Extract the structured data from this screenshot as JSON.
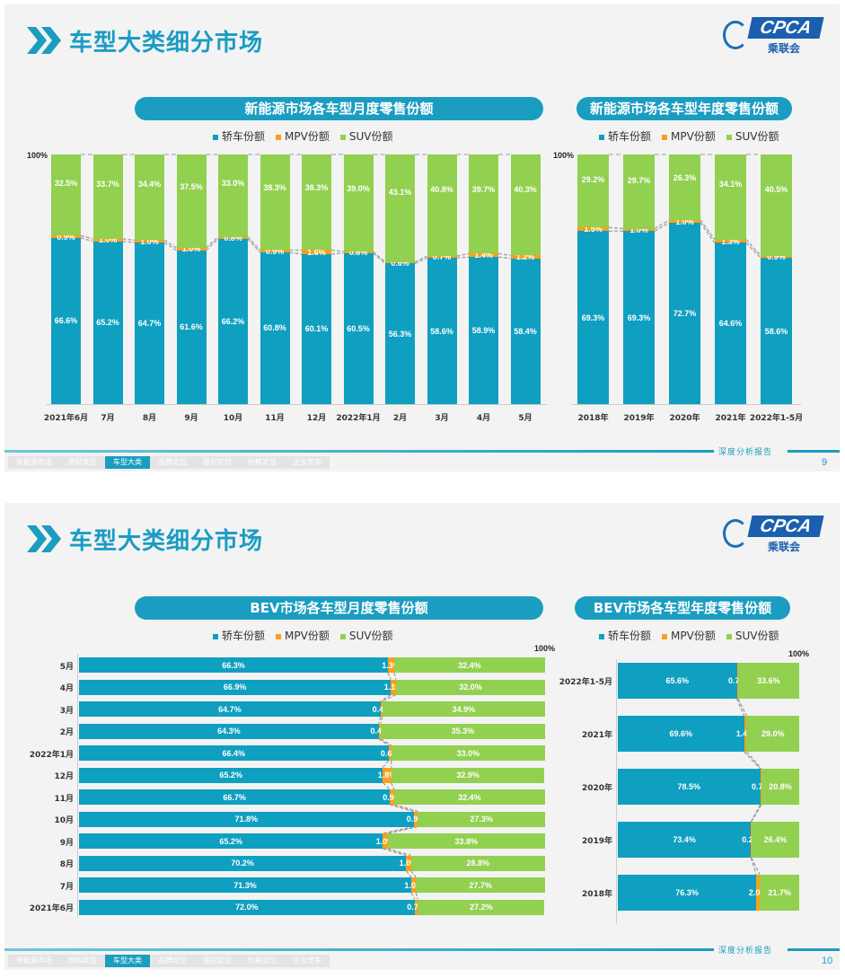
{
  "colors": {
    "sedan": "#0f9fc0",
    "mpv": "#f7a11a",
    "suv": "#92d050",
    "accent": "#1a9dc0"
  },
  "footer": {
    "nav": [
      "新能源市场",
      "燃料类型",
      "车型大类",
      "品牌定位",
      "级别定位",
      "价格定位",
      "企业竞争"
    ],
    "active_index": 2,
    "report_label": "深度分析报告"
  },
  "logo": {
    "text": "CPCA",
    "sub": "乘联会",
    "mark": "CPCA"
  },
  "legend": {
    "sedan": "轿车份额",
    "mpv": "MPV份额",
    "suv": "SUV份额"
  },
  "slides": [
    {
      "title": "车型大类细分市场",
      "page": "9",
      "chart_left_title": "新能源市场各车型月度零售份额",
      "chart_right_title": "新能源市场各车型年度零售份额"
    },
    {
      "title": "车型大类细分市场",
      "page": "10",
      "chart_left_title": "BEV市场各车型月度零售份额",
      "chart_right_title": "BEV市场各车型年度零售份额"
    }
  ],
  "chart_data": [
    {
      "type": "bar",
      "stacked": true,
      "orientation": "vertical",
      "title": "新能源市场各车型月度零售份额",
      "ymax_label": "100%",
      "ylim": [
        0,
        100
      ],
      "legend": "top",
      "categories": [
        "2021年6月",
        "7月",
        "8月",
        "9月",
        "10月",
        "11月",
        "12月",
        "2022年1月",
        "2月",
        "3月",
        "4月",
        "5月"
      ],
      "series": [
        {
          "name": "轿车份额",
          "values": [
            66.6,
            65.2,
            64.7,
            61.6,
            66.2,
            60.8,
            60.1,
            60.5,
            56.3,
            58.6,
            58.9,
            58.4
          ]
        },
        {
          "name": "MPV份额",
          "values": [
            0.9,
            1.0,
            1.0,
            1.0,
            0.8,
            0.9,
            1.6,
            0.6,
            0.6,
            0.7,
            1.4,
            1.2
          ]
        },
        {
          "name": "SUV份额",
          "values": [
            32.5,
            33.7,
            34.4,
            37.5,
            33.0,
            38.3,
            38.3,
            39.0,
            43.1,
            40.8,
            39.7,
            40.3
          ]
        }
      ]
    },
    {
      "type": "bar",
      "stacked": true,
      "orientation": "vertical",
      "title": "新能源市场各车型年度零售份额",
      "ymax_label": "100%",
      "ylim": [
        0,
        100
      ],
      "legend": "top",
      "categories": [
        "2018年",
        "2019年",
        "2020年",
        "2021年",
        "2022年1-5月"
      ],
      "series": [
        {
          "name": "轿车份额",
          "values": [
            69.3,
            69.3,
            72.7,
            64.6,
            58.6
          ]
        },
        {
          "name": "MPV份额",
          "values": [
            1.5,
            1.0,
            1.0,
            1.3,
            0.9
          ]
        },
        {
          "name": "SUV份额",
          "values": [
            29.2,
            29.7,
            26.3,
            34.1,
            40.5
          ]
        }
      ]
    },
    {
      "type": "bar",
      "stacked": true,
      "orientation": "horizontal",
      "title": "BEV市场各车型月度零售份额",
      "xmax_label": "100%",
      "xlim": [
        0,
        100
      ],
      "legend": "top",
      "categories": [
        "5月",
        "4月",
        "3月",
        "2月",
        "2022年1月",
        "12月",
        "11月",
        "10月",
        "9月",
        "8月",
        "7月",
        "2021年6月"
      ],
      "series": [
        {
          "name": "轿车份额",
          "values": [
            66.3,
            66.9,
            64.7,
            64.3,
            66.4,
            65.2,
            66.7,
            71.8,
            65.2,
            70.2,
            71.3,
            72.0
          ]
        },
        {
          "name": "MPV份额",
          "values": [
            1.3,
            1.1,
            0.4,
            0.4,
            0.6,
            1.8,
            0.9,
            0.9,
            1.0,
            1.0,
            1.0,
            0.7
          ]
        },
        {
          "name": "SUV份额",
          "values": [
            32.4,
            32.0,
            34.9,
            35.3,
            33.0,
            32.9,
            32.4,
            27.3,
            33.8,
            28.8,
            27.7,
            27.2
          ]
        }
      ]
    },
    {
      "type": "bar",
      "stacked": true,
      "orientation": "horizontal",
      "title": "BEV市场各车型年度零售份额",
      "xmax_label": "100%",
      "xlim": [
        0,
        100
      ],
      "legend": "top",
      "categories": [
        "2022年1-5月",
        "2021年",
        "2020年",
        "2019年",
        "2018年"
      ],
      "series": [
        {
          "name": "轿车份额",
          "values": [
            65.6,
            69.6,
            78.5,
            73.4,
            76.3
          ]
        },
        {
          "name": "MPV份额",
          "values": [
            0.7,
            1.4,
            0.7,
            0.2,
            2.0
          ]
        },
        {
          "name": "SUV份额",
          "values": [
            33.6,
            29.0,
            20.8,
            26.4,
            21.7
          ]
        }
      ]
    }
  ]
}
